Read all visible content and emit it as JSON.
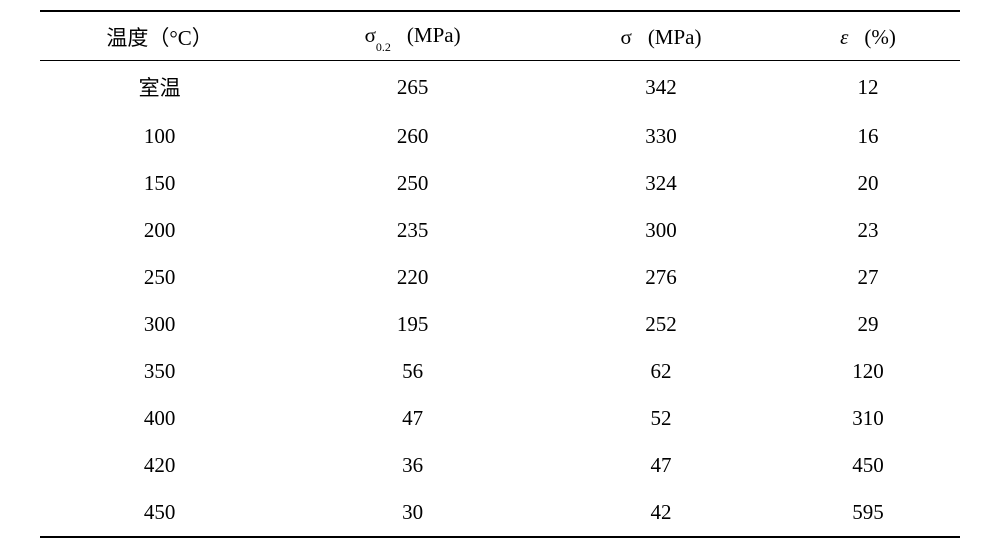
{
  "table": {
    "type": "table",
    "background_color": "#ffffff",
    "text_color": "#000000",
    "border_color": "#000000",
    "font_family": "SimSun",
    "header_fontsize": 21,
    "cell_fontsize": 21,
    "top_border_width": 2,
    "header_bottom_border_width": 1.5,
    "bottom_border_width": 2,
    "columns": {
      "temp": {
        "label_prefix": "温度（°",
        "label_suffix": "C）",
        "width_pct": 26,
        "align": "center"
      },
      "sigma02": {
        "symbol": "σ",
        "subscript": "0.2",
        "unit": "(MPa)",
        "width_pct": 29,
        "align": "center"
      },
      "sigma": {
        "symbol": "σ",
        "unit": "(MPa)",
        "width_pct": 25,
        "align": "center"
      },
      "eps": {
        "symbol": "ε",
        "unit": "(%)",
        "width_pct": 20,
        "align": "center",
        "italic_symbol": true
      }
    },
    "rows": [
      {
        "temp": "室温",
        "sigma02": "265",
        "sigma": "342",
        "eps": "12"
      },
      {
        "temp": "100",
        "sigma02": "260",
        "sigma": "330",
        "eps": "16"
      },
      {
        "temp": "150",
        "sigma02": "250",
        "sigma": "324",
        "eps": "20"
      },
      {
        "temp": "200",
        "sigma02": "235",
        "sigma": "300",
        "eps": "23"
      },
      {
        "temp": "250",
        "sigma02": "220",
        "sigma": "276",
        "eps": "27"
      },
      {
        "temp": "300",
        "sigma02": "195",
        "sigma": "252",
        "eps": "29"
      },
      {
        "temp": "350",
        "sigma02": "56",
        "sigma": "62",
        "eps": "120"
      },
      {
        "temp": "400",
        "sigma02": "47",
        "sigma": "52",
        "eps": "310"
      },
      {
        "temp": "420",
        "sigma02": "36",
        "sigma": "47",
        "eps": "450"
      },
      {
        "temp": "450",
        "sigma02": "30",
        "sigma": "42",
        "eps": "595"
      }
    ]
  }
}
